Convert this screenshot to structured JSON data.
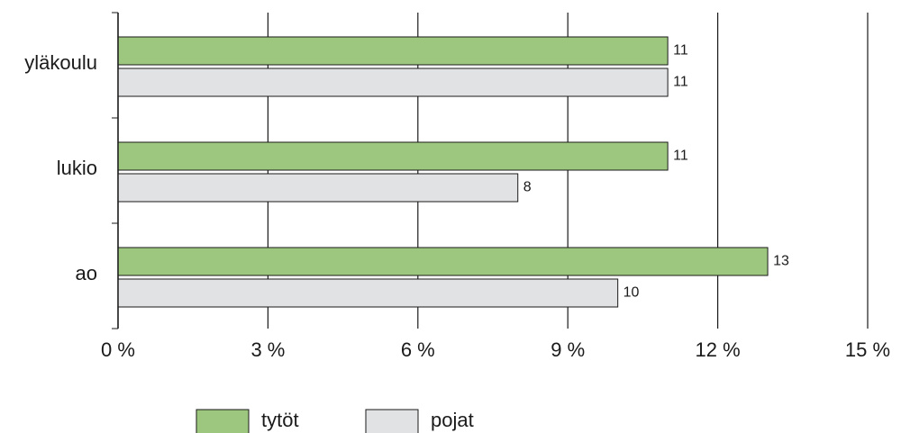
{
  "chart_data": {
    "type": "bar",
    "orientation": "horizontal",
    "categories": [
      "yläkoulu",
      "lukio",
      "ao"
    ],
    "series": [
      {
        "name": "tytöt",
        "color": "#9dc67e",
        "values": [
          11,
          11,
          13
        ]
      },
      {
        "name": "pojat",
        "color": "#e1e2e4",
        "values": [
          11,
          8,
          10
        ]
      }
    ],
    "xlim": [
      0,
      15
    ],
    "xticks": [
      {
        "value": 0,
        "label": "0 %"
      },
      {
        "value": 3,
        "label": "3 %"
      },
      {
        "value": 6,
        "label": "6 %"
      },
      {
        "value": 9,
        "label": "9 %"
      },
      {
        "value": 12,
        "label": "12 %"
      },
      {
        "value": 15,
        "label": "15 %"
      }
    ],
    "grid": true,
    "legend": "bottom"
  }
}
